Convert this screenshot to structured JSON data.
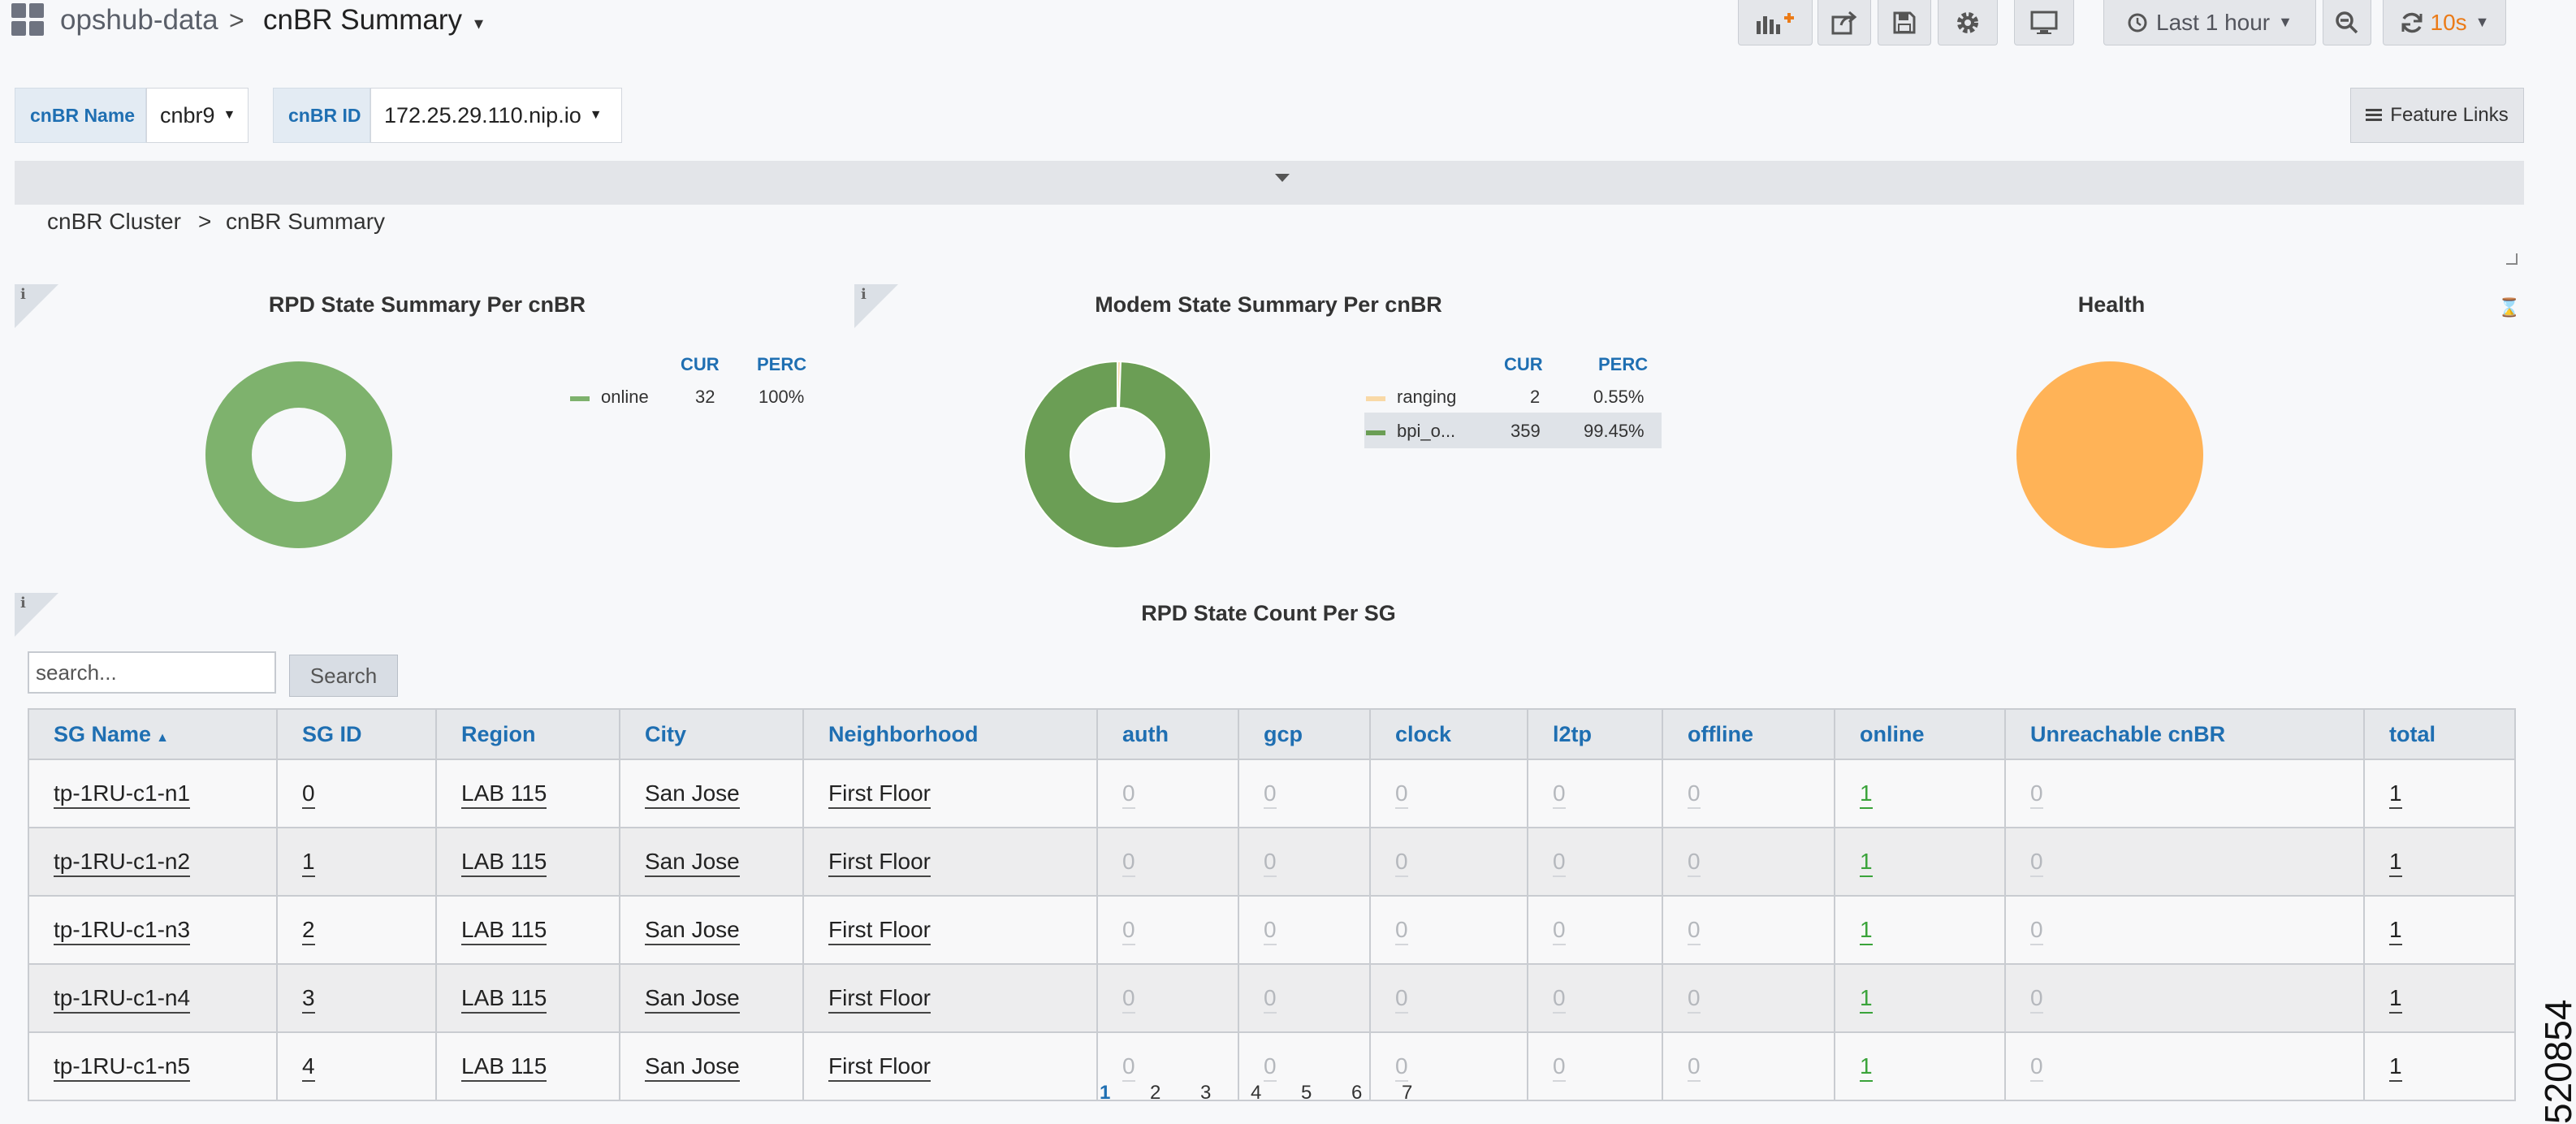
{
  "header": {
    "folder": "opshub-data",
    "separator": ">",
    "dashboard_title": "cnBR Summary",
    "time_range": "Last 1 hour",
    "refresh_interval": "10s"
  },
  "variables": [
    {
      "label": "cnBR Name",
      "value": "cnbr9"
    },
    {
      "label": "cnBR ID",
      "value": "172.25.29.110.nip.io"
    }
  ],
  "feature_links": "Feature Links",
  "breadcrumb": {
    "parent": "cnBR Cluster",
    "separator": ">",
    "current": "cnBR Summary"
  },
  "panels": {
    "info_glyph": "i",
    "rpd": {
      "title": "RPD State Summary Per cnBR",
      "legend": {
        "cur_header": "CUR",
        "perc_header": "PERC",
        "items": [
          {
            "name": "online",
            "cur": "32",
            "perc": "100%",
            "color": "#7eb26d"
          }
        ]
      }
    },
    "modem": {
      "title": "Modem State Summary Per cnBR",
      "legend": {
        "cur_header": "CUR",
        "perc_header": "PERC",
        "items": [
          {
            "name": "ranging",
            "cur": "2",
            "perc": "0.55%",
            "color": "#f9d9a6"
          },
          {
            "name": "bpi_o...",
            "cur": "359",
            "perc": "99.45%",
            "color": "#6b9e55"
          }
        ]
      }
    },
    "health": {
      "title": "Health",
      "color": "#ffb357"
    }
  },
  "chart_data": [
    {
      "type": "pie",
      "title": "RPD State Summary Per cnBR",
      "labels": [
        "online"
      ],
      "values": [
        32
      ],
      "colors": [
        "#7eb26d"
      ],
      "donut": true
    },
    {
      "type": "pie",
      "title": "Modem State Summary Per cnBR",
      "labels": [
        "ranging",
        "bpi_o..."
      ],
      "values": [
        2,
        359
      ],
      "colors": [
        "#f9d9a6",
        "#6b9e55"
      ],
      "donut": true
    },
    {
      "type": "pie",
      "title": "Health",
      "labels": [
        ""
      ],
      "values": [
        1
      ],
      "colors": [
        "#ffb357"
      ],
      "donut": false
    }
  ],
  "table": {
    "title": "RPD State Count Per SG",
    "search_placeholder": "search...",
    "search_button": "Search",
    "columns": [
      "SG Name",
      "SG ID",
      "Region",
      "City",
      "Neighborhood",
      "auth",
      "gcp",
      "clock",
      "l2tp",
      "offline",
      "online",
      "Unreachable cnBR",
      "total"
    ],
    "rows": [
      [
        "tp-1RU-c1-n1",
        "0",
        "LAB 115",
        "San Jose",
        "First Floor",
        "0",
        "0",
        "0",
        "0",
        "0",
        "1",
        "0",
        "1"
      ],
      [
        "tp-1RU-c1-n2",
        "1",
        "LAB 115",
        "San Jose",
        "First Floor",
        "0",
        "0",
        "0",
        "0",
        "0",
        "1",
        "0",
        "1"
      ],
      [
        "tp-1RU-c1-n3",
        "2",
        "LAB 115",
        "San Jose",
        "First Floor",
        "0",
        "0",
        "0",
        "0",
        "0",
        "1",
        "0",
        "1"
      ],
      [
        "tp-1RU-c1-n4",
        "3",
        "LAB 115",
        "San Jose",
        "First Floor",
        "0",
        "0",
        "0",
        "0",
        "0",
        "1",
        "0",
        "1"
      ],
      [
        "tp-1RU-c1-n5",
        "4",
        "LAB 115",
        "San Jose",
        "First Floor",
        "0",
        "0",
        "0",
        "0",
        "0",
        "1",
        "0",
        "1"
      ]
    ],
    "pages": [
      "1",
      "2",
      "3",
      "4",
      "5",
      "6",
      "7"
    ]
  },
  "figure_number": "520854",
  "icons": [
    "dashboard-grid-icon",
    "add-panel-icon",
    "share-icon",
    "save-icon",
    "settings-gear-icon",
    "tv-mode-icon",
    "clock-icon",
    "zoom-out-icon",
    "refresh-icon",
    "hamburger-icon"
  ]
}
